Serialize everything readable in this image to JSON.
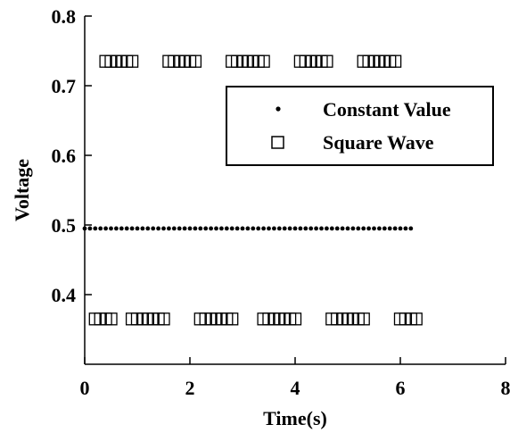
{
  "chart_data": {
    "type": "scatter",
    "title": "",
    "xlabel": "Time(s)",
    "ylabel": "Voltage",
    "xlim": [
      0,
      8
    ],
    "ylim": [
      0.3,
      0.8
    ],
    "xticks": [
      0,
      2,
      4,
      6,
      8
    ],
    "xtick_labels": [
      "0",
      "2",
      "4",
      "6",
      "8"
    ],
    "yticks": [
      0.4,
      0.5,
      0.6,
      0.7,
      0.8
    ],
    "ytick_labels": [
      "0.4",
      "0.5",
      "0.6",
      "0.7",
      "0.8"
    ],
    "grid": false,
    "legend": {
      "placement": "upper-right"
    },
    "series": [
      {
        "name": "Constant Value",
        "marker": "dot",
        "color": "#000000",
        "x_start": 0,
        "x_end": 6.28,
        "x_step": 0.1,
        "y": 0.495
      },
      {
        "name": "Square Wave",
        "marker": "square",
        "color": "#000000",
        "x_step": 0.1,
        "segments": [
          {
            "x_start": 0.2,
            "x_end": 0.5,
            "y": 0.365
          },
          {
            "x_start": 0.4,
            "x_end": 0.9,
            "y": 0.735
          },
          {
            "x_start": 0.9,
            "x_end": 1.5,
            "y": 0.365
          },
          {
            "x_start": 1.6,
            "x_end": 2.1,
            "y": 0.735
          },
          {
            "x_start": 2.2,
            "x_end": 2.8,
            "y": 0.365
          },
          {
            "x_start": 2.8,
            "x_end": 3.4,
            "y": 0.735
          },
          {
            "x_start": 3.4,
            "x_end": 4.0,
            "y": 0.365
          },
          {
            "x_start": 4.1,
            "x_end": 4.6,
            "y": 0.735
          },
          {
            "x_start": 4.7,
            "x_end": 5.3,
            "y": 0.365
          },
          {
            "x_start": 5.3,
            "x_end": 5.9,
            "y": 0.735
          },
          {
            "x_start": 6.0,
            "x_end": 6.3,
            "y": 0.365
          }
        ]
      }
    ]
  }
}
